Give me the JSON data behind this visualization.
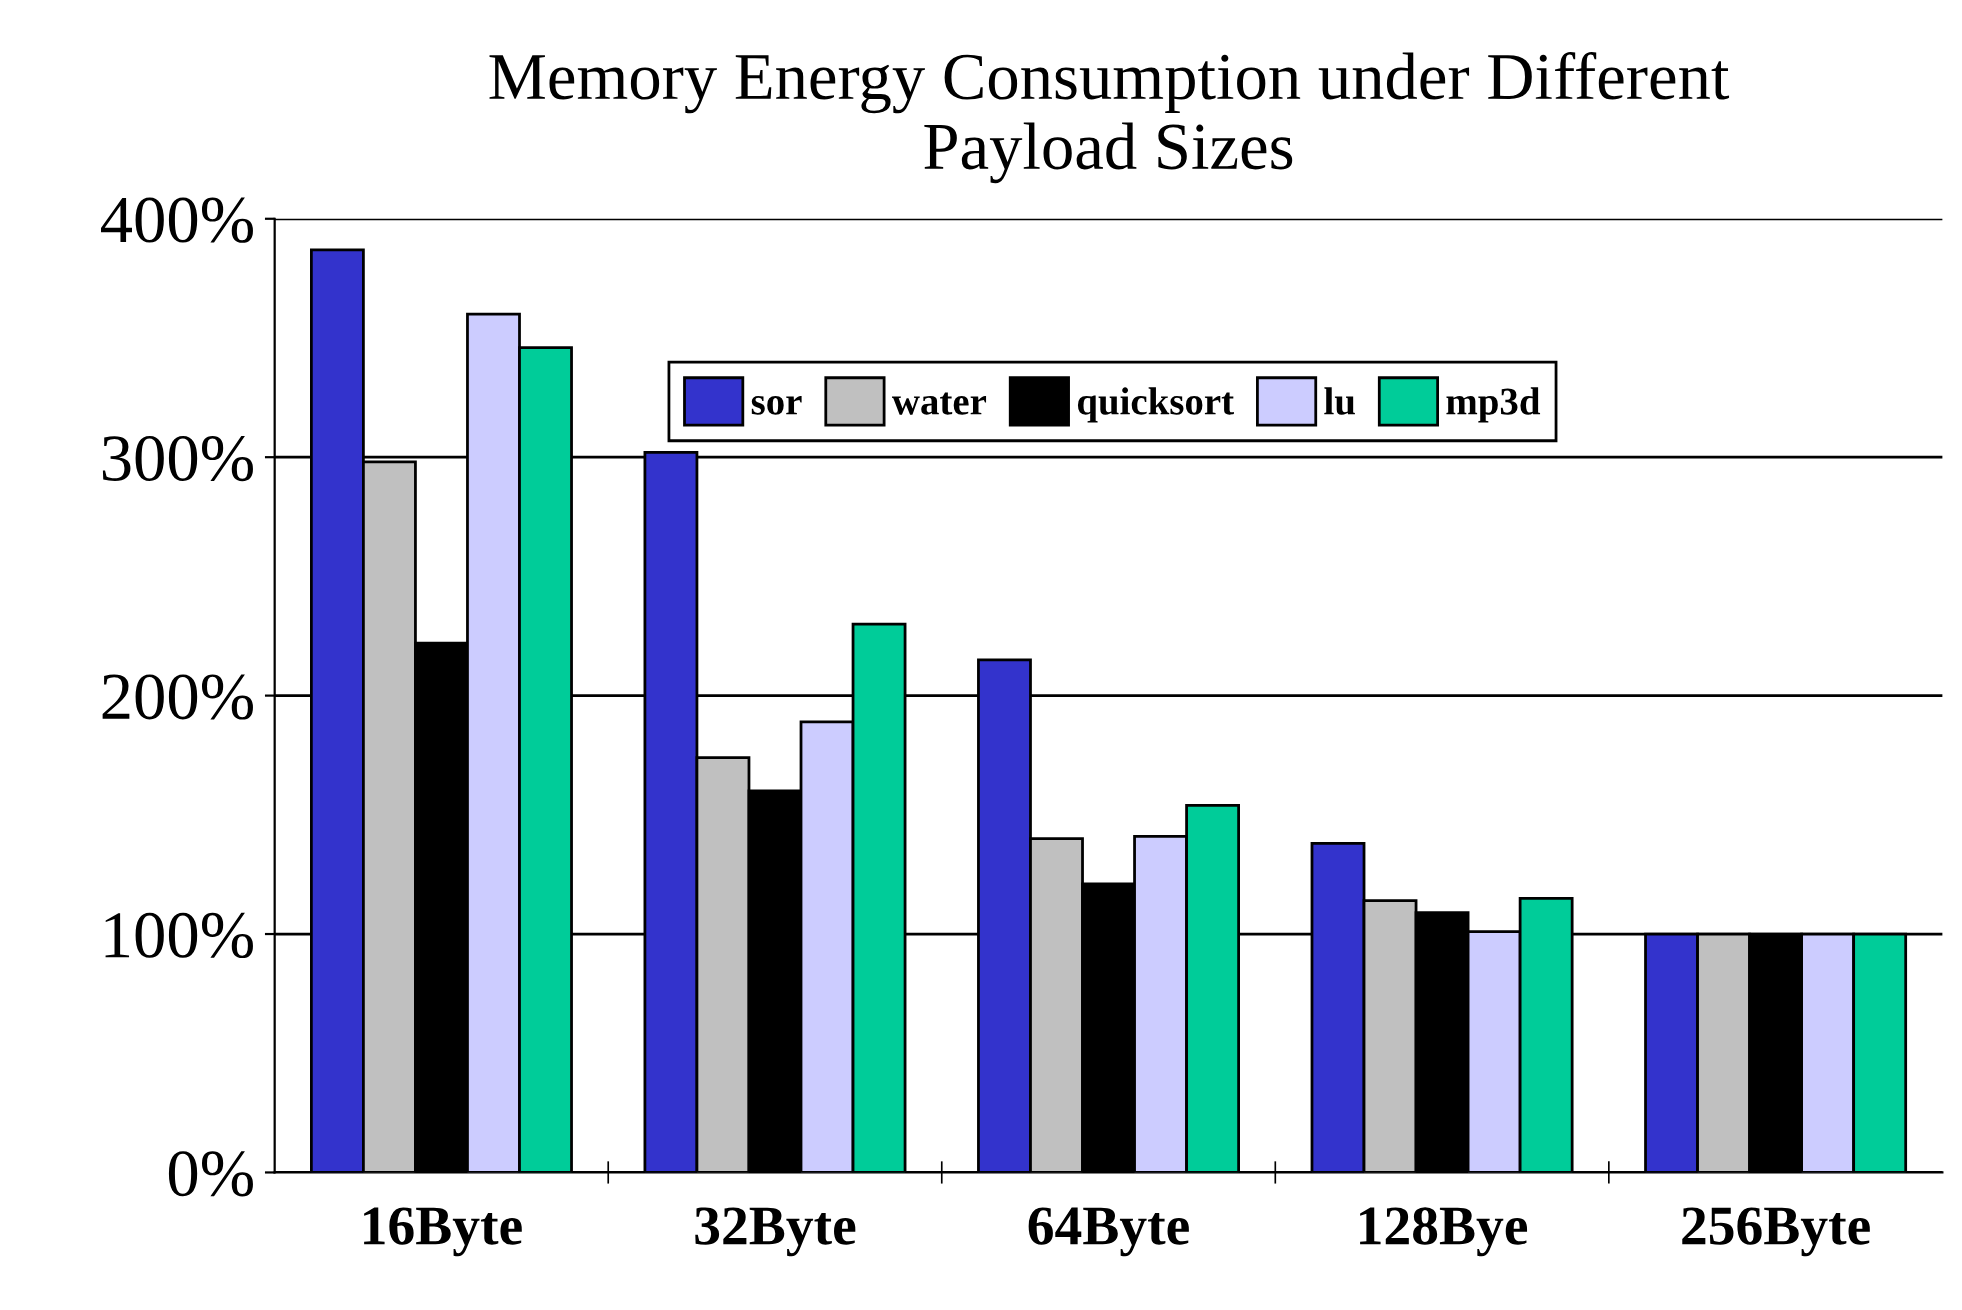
{
  "chart_data": {
    "type": "bar",
    "title": "Memory Energy Consumption under Different\nPayload Sizes",
    "categories": [
      "16Byte",
      "32Byte",
      "64Byte",
      "128Bye",
      "256Byte"
    ],
    "series": [
      {
        "name": "sor",
        "color": "#3333cc",
        "values": [
          387,
          302,
          215,
          138,
          100
        ]
      },
      {
        "name": "water",
        "color": "#c0c0c0",
        "values": [
          298,
          174,
          140,
          114,
          100
        ]
      },
      {
        "name": "quicksort",
        "color": "#000000",
        "values": [
          222,
          160,
          121,
          109,
          100
        ]
      },
      {
        "name": "lu",
        "color": "#ccccff",
        "values": [
          360,
          189,
          141,
          101,
          100
        ]
      },
      {
        "name": "mp3d",
        "color": "#00cc99",
        "values": [
          346,
          230,
          154,
          115,
          100
        ]
      }
    ],
    "ylim": [
      0,
      400
    ],
    "yticks": [
      {
        "value": 0,
        "label": "0%"
      },
      {
        "value": 100,
        "label": "100%"
      },
      {
        "value": 200,
        "label": "200%"
      },
      {
        "value": 300,
        "label": "300%"
      },
      {
        "value": 400,
        "label": "400%"
      }
    ],
    "grid": "y",
    "legend": "top right"
  }
}
